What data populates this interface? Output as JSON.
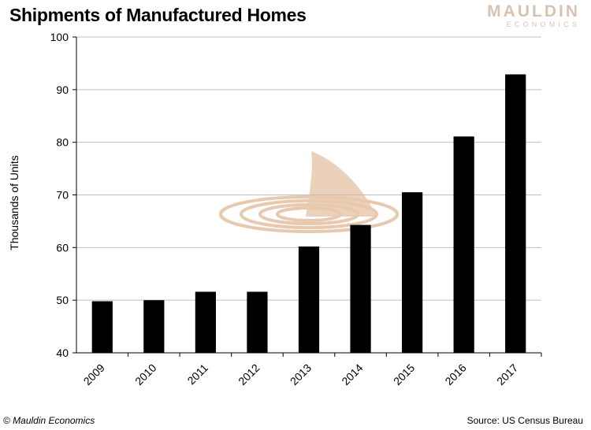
{
  "header": {
    "title": "Shipments of Manufactured Homes",
    "logo_line1": "MAULDIN",
    "logo_line2": "ECONOMICS"
  },
  "footer": {
    "copyright": "© Mauldin Economics",
    "source": "Source: US Census Bureau"
  },
  "colors": {
    "bar": "#000000",
    "gridline": "#bfbfbf",
    "watermark": "#e8c9ad",
    "logo": "#d8c3b3"
  },
  "watermark_icon": "shark-fin-ripple-icon",
  "chart_data": {
    "type": "bar",
    "title": "Shipments of Manufactured Homes",
    "xlabel": "",
    "ylabel": "Thousands of Units",
    "categories": [
      "2009",
      "2010",
      "2011",
      "2012",
      "2013",
      "2014",
      "2015",
      "2016",
      "2017"
    ],
    "values": [
      49.8,
      50.0,
      51.6,
      51.6,
      60.2,
      64.3,
      70.5,
      81.1,
      92.9
    ],
    "ylim": [
      40,
      100
    ],
    "yticks": [
      40,
      50,
      60,
      70,
      80,
      90,
      100
    ],
    "grid": true,
    "legend": "none"
  }
}
